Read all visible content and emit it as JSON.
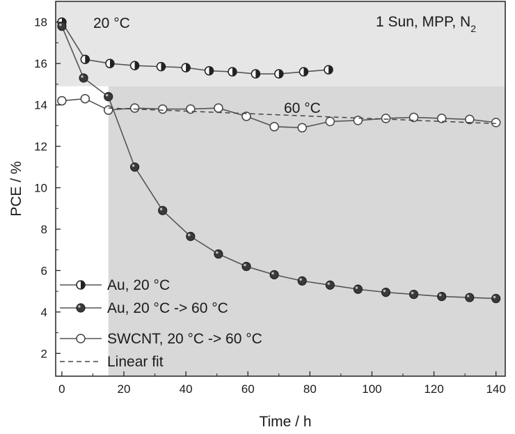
{
  "chart_data": {
    "type": "line",
    "xlabel": "Time / h",
    "ylabel": "PCE / %",
    "xlim": [
      -2,
      143
    ],
    "ylim": [
      0.9,
      19.0
    ],
    "x_ticks": [
      0,
      20,
      40,
      60,
      80,
      100,
      120,
      140
    ],
    "y_ticks": [
      2,
      4,
      6,
      8,
      10,
      12,
      14,
      16,
      18
    ],
    "grid": false,
    "legend_position": "bottom-left",
    "annotations": {
      "temp_low": "20 °C",
      "temp_high": "60 °C",
      "conditions": "1 Sun, MPP, N",
      "conditions_sub": "2"
    },
    "shaded_regions": [
      {
        "x": [
          -2,
          143
        ],
        "y": [
          14.9,
          19.0
        ],
        "shade": "light"
      },
      {
        "x": [
          15,
          143
        ],
        "y": [
          0.9,
          14.9
        ],
        "shade": "dark"
      }
    ],
    "series": [
      {
        "name": "Au, 20 °C",
        "marker": "half-filled-circle",
        "x": [
          0,
          7.5,
          15.5,
          23.5,
          32,
          40,
          47.5,
          55,
          62.5,
          70,
          78,
          86
        ],
        "y": [
          18.0,
          16.2,
          16.0,
          15.9,
          15.85,
          15.8,
          15.65,
          15.6,
          15.5,
          15.5,
          15.6,
          15.7
        ]
      },
      {
        "name": "Au, 20 °C -> 60 °C",
        "marker": "dark-filled-circle",
        "x": [
          0,
          7,
          15,
          23.5,
          32.5,
          41.5,
          50.5,
          59.5,
          68.5,
          77.5,
          86.5,
          95.5,
          104.5,
          113.5,
          122.5,
          131.5,
          140
        ],
        "y": [
          17.8,
          15.3,
          14.4,
          11.0,
          8.9,
          7.65,
          6.8,
          6.2,
          5.8,
          5.5,
          5.3,
          5.1,
          4.95,
          4.85,
          4.75,
          4.7,
          4.65
        ]
      },
      {
        "name": "SWCNT, 20 °C -> 60 °C",
        "marker": "open-circle",
        "x": [
          0,
          7.5,
          15,
          23.5,
          32.5,
          41.5,
          50.5,
          59.5,
          68.5,
          77.5,
          86.5,
          95.5,
          104.5,
          113.5,
          122.5,
          131.5,
          140
        ],
        "y": [
          14.2,
          14.3,
          13.75,
          13.85,
          13.8,
          13.8,
          13.85,
          13.45,
          12.95,
          12.9,
          13.2,
          13.25,
          13.35,
          13.4,
          13.35,
          13.3,
          13.15
        ]
      },
      {
        "name": "Linear fit",
        "marker": "none",
        "line_style": "dashed",
        "x": [
          15,
          140
        ],
        "y": [
          13.85,
          13.1
        ]
      }
    ]
  }
}
